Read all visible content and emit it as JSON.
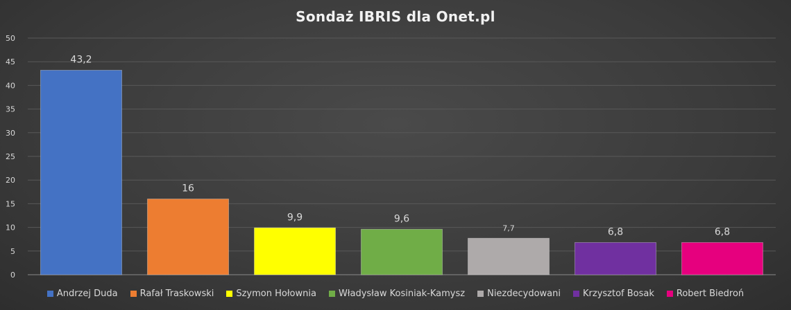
{
  "chart_data": {
    "type": "bar",
    "title": "Sondaż IBRIS dla Onet.pl",
    "categories": [
      "Andrzej Duda",
      "Rafał Traskowski",
      "Szymon Hołownia",
      "Władysław Kosiniak-Kamysz",
      "Niezdecydowani",
      "Krzysztof Bosak",
      "Robert Biedroń"
    ],
    "values": [
      43.2,
      16,
      9.9,
      9.6,
      7.7,
      6.8,
      6.8
    ],
    "data_labels": [
      "43,2",
      "16",
      "9,9",
      "9,6",
      "7,7",
      "6,8",
      "6,8"
    ],
    "colors": [
      "#4472c4",
      "#ed7d31",
      "#ffff00",
      "#70ad47",
      "#aeaaaa",
      "#7030a0",
      "#e6007e"
    ],
    "y_ticks": [
      "0",
      "5",
      "10",
      "15",
      "20",
      "25",
      "30",
      "35",
      "40",
      "45",
      "50"
    ],
    "ylim": [
      0,
      50
    ],
    "grid": true,
    "legend_position": "bottom",
    "xlabel": "",
    "ylabel": ""
  }
}
